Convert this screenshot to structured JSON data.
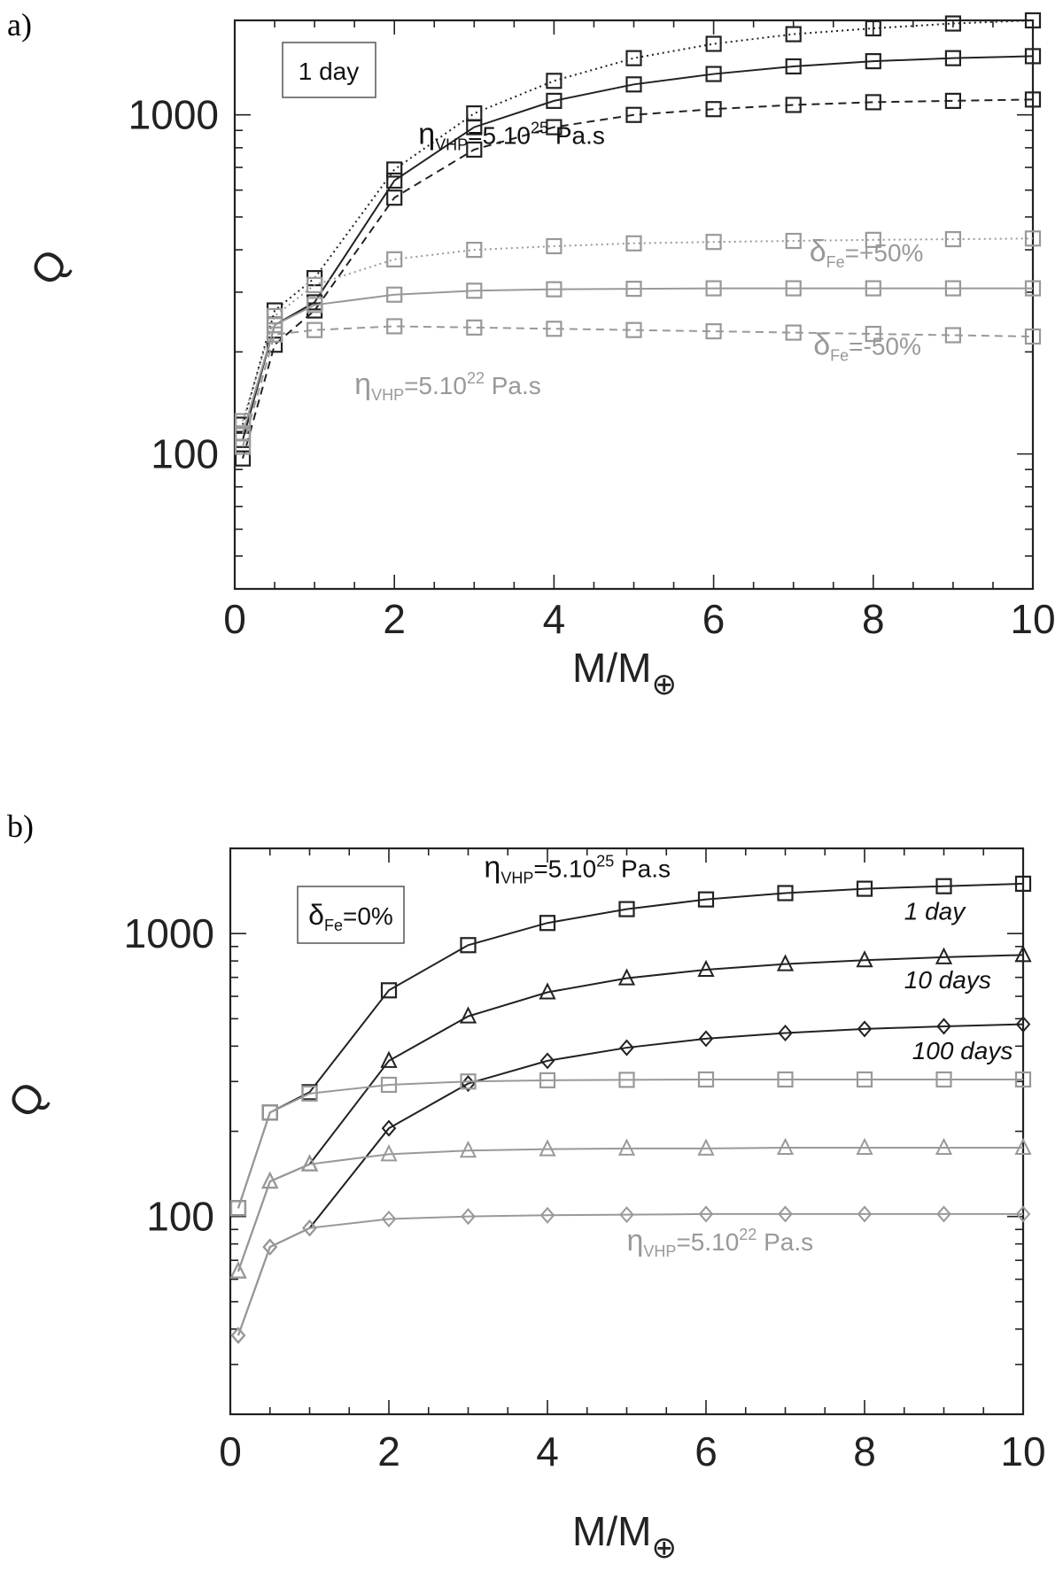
{
  "chart_data": [
    {
      "panel": "a)",
      "type": "line",
      "y_scale": "log",
      "xlim": [
        0,
        10
      ],
      "ylim": [
        40,
        1900
      ],
      "x_ticks": [
        0,
        2,
        4,
        6,
        8,
        10
      ],
      "x_tick_labels": [
        "0",
        "2",
        "4",
        "6",
        "8",
        "10"
      ],
      "y_ticks": [
        100,
        1000
      ],
      "y_tick_labels": [
        "100",
        "1000"
      ],
      "xlabel": "M/M",
      "xlabel_symbol": "⊕",
      "ylabel": "Q",
      "legend_box": "1 day",
      "x": [
        0.1,
        0.5,
        1,
        2,
        3,
        4,
        5,
        6,
        7,
        8,
        9,
        10
      ],
      "series": [
        {
          "name": "5.10^25 Pa.s, δFe=+50%",
          "color": "#222222",
          "style": "dotted",
          "marker": "square",
          "values": [
            122,
            265,
            330,
            690,
            1010,
            1260,
            1470,
            1620,
            1730,
            1800,
            1860,
            1900
          ]
        },
        {
          "name": "5.10^25 Pa.s, δFe=0%",
          "color": "#222222",
          "style": "solid",
          "marker": "square",
          "values": [
            110,
            240,
            280,
            640,
            920,
            1100,
            1230,
            1320,
            1390,
            1440,
            1470,
            1490
          ]
        },
        {
          "name": "5.10^25 Pa.s, δFe=-50%",
          "color": "#222222",
          "style": "dashed",
          "marker": "square",
          "values": [
            97,
            210,
            265,
            570,
            790,
            920,
            1000,
            1040,
            1070,
            1090,
            1100,
            1110
          ]
        },
        {
          "name": "5.10^22 Pa.s, δFe=+50%",
          "color": "#999999",
          "style": "dotted",
          "marker": "square",
          "values": [
            125,
            255,
            315,
            375,
            400,
            410,
            418,
            422,
            425,
            428,
            430,
            432
          ]
        },
        {
          "name": "5.10^22 Pa.s, δFe=0%",
          "color": "#999999",
          "style": "solid",
          "marker": "square",
          "values": [
            115,
            240,
            275,
            295,
            303,
            306,
            307,
            308,
            308,
            308,
            308,
            308
          ]
        },
        {
          "name": "5.10^22 Pa.s, δFe=-50%",
          "color": "#999999",
          "style": "dashed",
          "marker": "square",
          "values": [
            105,
            225,
            232,
            238,
            236,
            234,
            232,
            230,
            228,
            226,
            224,
            222
          ]
        }
      ],
      "annotations": [
        {
          "label": "η",
          "sub": "VHP",
          "mid": "=5.10",
          "sup": "25",
          "tail": " Pa.s",
          "color": "#111111",
          "x": 2.3,
          "y": 820
        },
        {
          "label": "η",
          "sub": "VHP",
          "mid": "=5.10",
          "sup": "22",
          "tail": " Pa.s",
          "color": "#999999",
          "x": 1.5,
          "y": 150
        },
        {
          "label": "δ",
          "sub": "Fe",
          "mid": "=+50%",
          "sup": "",
          "tail": "",
          "color": "#999999",
          "x": 7.2,
          "y": 370
        },
        {
          "label": "δ",
          "sub": "Fe",
          "mid": "=-50%",
          "sup": "",
          "tail": "",
          "color": "#999999",
          "x": 7.25,
          "y": 196
        }
      ]
    },
    {
      "panel": "b)",
      "type": "line",
      "y_scale": "log",
      "xlim": [
        0,
        10
      ],
      "ylim": [
        20,
        2000
      ],
      "x_ticks": [
        0,
        2,
        4,
        6,
        8,
        10
      ],
      "x_tick_labels": [
        "0",
        "2",
        "4",
        "6",
        "8",
        "10"
      ],
      "y_ticks": [
        100,
        1000
      ],
      "y_tick_labels": [
        "100",
        "1000"
      ],
      "xlabel": "M/M",
      "xlabel_symbol": "⊕",
      "ylabel": "Q",
      "legend_box": {
        "label": "δ",
        "sub": "Fe",
        "tail": "=0%"
      },
      "x": [
        0.1,
        0.5,
        1,
        2,
        3,
        4,
        5,
        6,
        7,
        8,
        9,
        10
      ],
      "series": [
        {
          "name": "5.10^25 Pa.s, 1 day",
          "color": "#222222",
          "style": "solid",
          "marker": "square",
          "values": [
            107,
            233,
            275,
            630,
            910,
            1090,
            1220,
            1320,
            1390,
            1440,
            1470,
            1500
          ]
        },
        {
          "name": "5.10^25 Pa.s, 10 days",
          "color": "#222222",
          "style": "solid",
          "marker": "triangle",
          "values": [
            64,
            133,
            153,
            355,
            510,
            620,
            695,
            745,
            780,
            805,
            825,
            840
          ]
        },
        {
          "name": "5.10^25 Pa.s, 100 days",
          "color": "#222222",
          "style": "solid",
          "marker": "diamond",
          "values": [
            38,
            78,
            91,
            205,
            295,
            355,
            395,
            425,
            445,
            460,
            470,
            478
          ]
        },
        {
          "name": "5.10^22 Pa.s, 1 day",
          "color": "#999999",
          "style": "solid",
          "marker": "square",
          "values": [
            107,
            233,
            272,
            292,
            300,
            303,
            304,
            305,
            305,
            305,
            305,
            305
          ]
        },
        {
          "name": "5.10^22 Pa.s, 10 days",
          "color": "#999999",
          "style": "solid",
          "marker": "triangle",
          "values": [
            64,
            133,
            153,
            166,
            171,
            173,
            174,
            174,
            175,
            175,
            175,
            175
          ]
        },
        {
          "name": "5.10^22 Pa.s, 100 days",
          "color": "#999999",
          "style": "solid",
          "marker": "diamond",
          "values": [
            38,
            78,
            91,
            98,
            100,
            101,
            101.5,
            102,
            102,
            102,
            102,
            102
          ]
        }
      ],
      "annotations": [
        {
          "label": "η",
          "sub": "VHP",
          "mid": "=5.10",
          "sup": "25",
          "tail": " Pa.s",
          "color": "#111111",
          "x": 3.2,
          "y": 1580
        },
        {
          "label": "η",
          "sub": "VHP",
          "mid": "=5.10",
          "sup": "22",
          "tail": " Pa.s",
          "color": "#999999",
          "x": 5.0,
          "y": 76
        },
        {
          "label": "1 day",
          "color": "#111111",
          "italic": true,
          "x": 8.5,
          "y": 1120
        },
        {
          "label": "10 days",
          "color": "#111111",
          "italic": true,
          "x": 8.5,
          "y": 640
        },
        {
          "label": "100 days",
          "color": "#111111",
          "italic": true,
          "x": 8.6,
          "y": 360
        }
      ]
    }
  ]
}
